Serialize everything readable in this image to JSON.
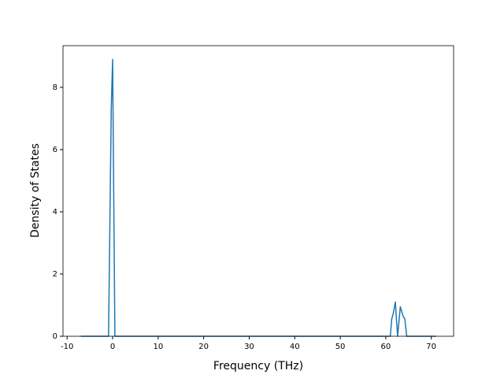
{
  "chart_data": {
    "type": "line",
    "xlabel": "Frequency (THz)",
    "ylabel": "Density of States",
    "x": [
      -7,
      -0.9,
      -0.3,
      0,
      0.5,
      61,
      61.3,
      61.6,
      62.1,
      62.6,
      63.2,
      63.8,
      64.2,
      64.6,
      71
    ],
    "series": [
      {
        "color": "#1f77b4",
        "values": [
          0,
          0,
          7.3,
          8.9,
          0,
          0,
          0.55,
          0.7,
          1.1,
          0,
          0.95,
          0.65,
          0.55,
          0,
          0
        ]
      }
    ],
    "xlim": [
      -10.9,
      74.9
    ],
    "ylim": [
      0,
      9.34
    ],
    "xticks": [
      -10,
      0,
      10,
      20,
      30,
      40,
      50,
      60,
      70
    ],
    "yticks": [
      0,
      2,
      4,
      6,
      8
    ]
  }
}
